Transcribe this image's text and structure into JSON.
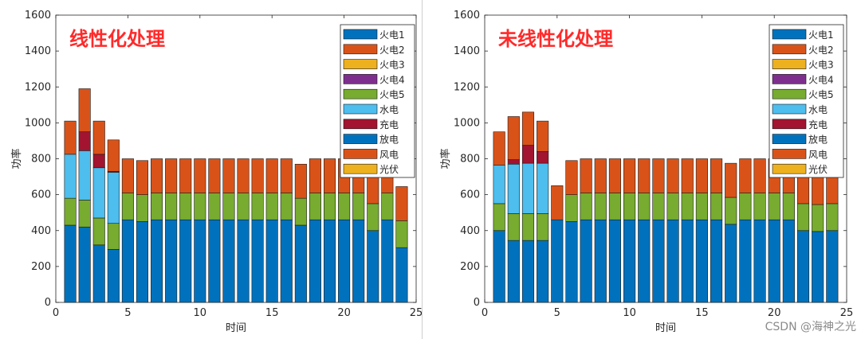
{
  "watermark": "CSDN @海神之光",
  "chart_data": [
    {
      "type": "bar",
      "stacked": true,
      "annotation": "线性化处理",
      "xlabel": "时间",
      "ylabel": "功率",
      "xlim": [
        0,
        25
      ],
      "ylim": [
        0,
        1600
      ],
      "xticks": [
        0,
        5,
        10,
        15,
        20,
        25
      ],
      "yticks": [
        0,
        200,
        400,
        600,
        800,
        1000,
        1200,
        1400,
        1600
      ],
      "legend_position": "top-right",
      "x": [
        1,
        2,
        3,
        4,
        5,
        6,
        7,
        8,
        9,
        10,
        11,
        12,
        13,
        14,
        15,
        16,
        17,
        18,
        19,
        20,
        21,
        22,
        23,
        24
      ],
      "series": [
        {
          "name": "火电1",
          "color": "#0072BD",
          "values": [
            430,
            420,
            320,
            295,
            460,
            450,
            460,
            460,
            460,
            460,
            460,
            460,
            460,
            460,
            460,
            460,
            430,
            460,
            460,
            460,
            460,
            400,
            460,
            305
          ]
        },
        {
          "name": "火电2",
          "color": "#D95319",
          "values": [
            0,
            0,
            0,
            0,
            0,
            0,
            0,
            0,
            0,
            0,
            0,
            0,
            0,
            0,
            0,
            0,
            0,
            0,
            0,
            0,
            0,
            0,
            0,
            0
          ]
        },
        {
          "name": "火电3",
          "color": "#EDB120",
          "values": [
            0,
            0,
            0,
            0,
            0,
            0,
            0,
            0,
            0,
            0,
            0,
            0,
            0,
            0,
            0,
            0,
            0,
            0,
            0,
            0,
            0,
            0,
            0,
            0
          ]
        },
        {
          "name": "火电4",
          "color": "#7E2F8E",
          "values": [
            0,
            0,
            0,
            0,
            0,
            0,
            0,
            0,
            0,
            0,
            0,
            0,
            0,
            0,
            0,
            0,
            0,
            0,
            0,
            0,
            0,
            0,
            0,
            0
          ]
        },
        {
          "name": "火电5",
          "color": "#77AC30",
          "values": [
            150,
            150,
            150,
            145,
            150,
            150,
            150,
            150,
            150,
            150,
            150,
            150,
            150,
            150,
            150,
            150,
            150,
            150,
            150,
            150,
            150,
            150,
            150,
            150
          ]
        },
        {
          "name": "水电",
          "color": "#4DBEEE",
          "values": [
            245,
            275,
            280,
            285,
            0,
            0,
            0,
            0,
            0,
            0,
            0,
            0,
            0,
            0,
            0,
            0,
            0,
            0,
            0,
            0,
            0,
            0,
            0,
            0
          ]
        },
        {
          "name": "充电",
          "color": "#A2142F",
          "values": [
            0,
            105,
            75,
            5,
            0,
            0,
            0,
            0,
            0,
            0,
            0,
            0,
            0,
            0,
            0,
            0,
            0,
            0,
            0,
            0,
            0,
            0,
            0,
            0
          ]
        },
        {
          "name": "放电",
          "color": "#0072BD",
          "values": [
            0,
            0,
            0,
            0,
            0,
            0,
            0,
            0,
            0,
            0,
            0,
            0,
            0,
            0,
            0,
            0,
            0,
            0,
            0,
            0,
            0,
            0,
            0,
            0
          ]
        },
        {
          "name": "风电",
          "color": "#D95319",
          "values": [
            185,
            240,
            185,
            175,
            190,
            190,
            190,
            190,
            190,
            190,
            190,
            190,
            190,
            190,
            190,
            190,
            190,
            190,
            190,
            190,
            190,
            190,
            190,
            190
          ]
        },
        {
          "name": "光伏",
          "color": "#EDB120",
          "values": [
            0,
            0,
            0,
            0,
            0,
            0,
            0,
            0,
            0,
            0,
            0,
            0,
            0,
            0,
            0,
            0,
            0,
            0,
            0,
            0,
            0,
            0,
            0,
            0
          ]
        }
      ]
    },
    {
      "type": "bar",
      "stacked": true,
      "annotation": "未线性化处理",
      "xlabel": "时间",
      "ylabel": "功率",
      "xlim": [
        0,
        25
      ],
      "ylim": [
        0,
        1600
      ],
      "xticks": [
        0,
        5,
        10,
        15,
        20,
        25
      ],
      "yticks": [
        0,
        200,
        400,
        600,
        800,
        1000,
        1200,
        1400,
        1600
      ],
      "legend_position": "top-right",
      "x": [
        1,
        2,
        3,
        4,
        5,
        6,
        7,
        8,
        9,
        10,
        11,
        12,
        13,
        14,
        15,
        16,
        17,
        18,
        19,
        20,
        21,
        22,
        23,
        24
      ],
      "series": [
        {
          "name": "火电1",
          "color": "#0072BD",
          "values": [
            400,
            345,
            345,
            345,
            460,
            450,
            460,
            460,
            460,
            460,
            460,
            460,
            460,
            460,
            460,
            460,
            435,
            460,
            460,
            460,
            460,
            400,
            395,
            400
          ]
        },
        {
          "name": "火电2",
          "color": "#D95319",
          "values": [
            0,
            0,
            0,
            0,
            0,
            0,
            0,
            0,
            0,
            0,
            0,
            0,
            0,
            0,
            0,
            0,
            0,
            0,
            0,
            0,
            0,
            0,
            0,
            0
          ]
        },
        {
          "name": "火电3",
          "color": "#EDB120",
          "values": [
            0,
            0,
            0,
            0,
            0,
            0,
            0,
            0,
            0,
            0,
            0,
            0,
            0,
            0,
            0,
            0,
            0,
            0,
            0,
            0,
            0,
            0,
            0,
            0
          ]
        },
        {
          "name": "火电4",
          "color": "#7E2F8E",
          "values": [
            0,
            0,
            0,
            0,
            0,
            0,
            0,
            0,
            0,
            0,
            0,
            0,
            0,
            0,
            0,
            0,
            0,
            0,
            0,
            0,
            0,
            0,
            0,
            0
          ]
        },
        {
          "name": "火电5",
          "color": "#77AC30",
          "values": [
            150,
            150,
            150,
            150,
            0,
            150,
            150,
            150,
            150,
            150,
            150,
            150,
            150,
            150,
            150,
            150,
            150,
            150,
            150,
            150,
            150,
            150,
            150,
            150
          ]
        },
        {
          "name": "水电",
          "color": "#4DBEEE",
          "values": [
            215,
            275,
            280,
            280,
            0,
            0,
            0,
            0,
            0,
            0,
            0,
            0,
            0,
            0,
            0,
            0,
            0,
            0,
            0,
            0,
            0,
            0,
            0,
            0
          ]
        },
        {
          "name": "充电",
          "color": "#A2142F",
          "values": [
            0,
            25,
            100,
            65,
            0,
            0,
            0,
            0,
            0,
            0,
            0,
            0,
            0,
            0,
            0,
            0,
            0,
            0,
            0,
            0,
            0,
            0,
            0,
            0
          ]
        },
        {
          "name": "放电",
          "color": "#0072BD",
          "values": [
            0,
            0,
            0,
            0,
            0,
            0,
            0,
            0,
            0,
            0,
            0,
            0,
            0,
            0,
            0,
            0,
            0,
            0,
            0,
            0,
            0,
            0,
            0,
            0
          ]
        },
        {
          "name": "风电",
          "color": "#D95319",
          "values": [
            185,
            240,
            185,
            170,
            190,
            190,
            190,
            190,
            190,
            190,
            190,
            190,
            190,
            190,
            190,
            190,
            190,
            190,
            190,
            190,
            190,
            190,
            190,
            190
          ]
        },
        {
          "name": "光伏",
          "color": "#EDB120",
          "values": [
            0,
            0,
            0,
            0,
            0,
            0,
            0,
            0,
            0,
            0,
            0,
            0,
            0,
            0,
            0,
            0,
            0,
            0,
            0,
            0,
            0,
            0,
            0,
            0
          ]
        }
      ]
    }
  ]
}
